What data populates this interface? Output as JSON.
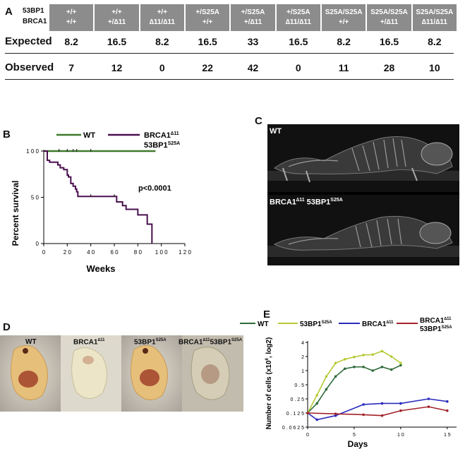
{
  "panelA": {
    "label": "A",
    "gene_labels": [
      "53BP1",
      "BRCA1"
    ],
    "genotypes": [
      {
        "g53": "+/+",
        "brca": "+/+"
      },
      {
        "g53": "+/+",
        "brca": "+/∆11"
      },
      {
        "g53": "+/+",
        "brca": "∆11/∆11"
      },
      {
        "g53": "+/S25A",
        "brca": "+/+"
      },
      {
        "g53": "+/S25A",
        "brca": "+/∆11"
      },
      {
        "g53": "+/S25A",
        "brca": "∆11/∆11"
      },
      {
        "g53": "S25A/S25A",
        "brca": "+/+"
      },
      {
        "g53": "S25A/S25A",
        "brca": "+/∆11"
      },
      {
        "g53": "S25A/S25A",
        "brca": "∆11/∆11"
      }
    ],
    "rows": [
      {
        "label": "Expected",
        "values": [
          "8.2",
          "16.5",
          "8.2",
          "16.5",
          "33",
          "16.5",
          "8.2",
          "16.5",
          "8.2"
        ]
      },
      {
        "label": "Observed",
        "values": [
          "7",
          "12",
          "0",
          "22",
          "42",
          "0",
          "11",
          "28",
          "10"
        ]
      }
    ]
  },
  "panelB": {
    "label": "B",
    "legend": [
      {
        "name": "WT",
        "color": "#3e7a2a"
      },
      {
        "name": "BRCA1",
        "sup": "∆11",
        "name2": "53BP1",
        "sup2": "S25A",
        "color": "#4a0f4f"
      }
    ],
    "ylabel": "Percent survival",
    "xlabel": "Weeks",
    "yticks": [
      "0",
      "5 0",
      "1 0 0"
    ],
    "xticks": [
      "0",
      "2 0",
      "4 0",
      "6 0",
      "8 0",
      "1 0 0",
      "1 2 0"
    ],
    "annotation": "p<0.0001",
    "chart_data": {
      "type": "line",
      "xlim": [
        0,
        120
      ],
      "ylim": [
        0,
        100
      ],
      "series": [
        {
          "name": "WT",
          "step": true,
          "x": [
            0,
            95
          ],
          "y": [
            100,
            100
          ]
        },
        {
          "name": "BRCA1∆11 53BP1S25A",
          "step": true,
          "x": [
            0,
            3,
            5,
            8,
            10,
            12,
            14,
            17,
            20,
            21,
            23,
            25,
            27,
            28,
            29,
            40,
            60,
            62,
            67,
            70,
            80,
            88,
            92
          ],
          "y": [
            100,
            90,
            88,
            88,
            88,
            85,
            82,
            80,
            74,
            72,
            65,
            62,
            59,
            56,
            51,
            51,
            51,
            45,
            41,
            37,
            31,
            21,
            0
          ]
        }
      ]
    }
  },
  "panelC": {
    "label": "C",
    "images": [
      {
        "caption": "WT"
      },
      {
        "caption": "BRCA1",
        "sup": "∆11",
        "caption2": " 53BP1",
        "sup2": "S25A"
      }
    ]
  },
  "panelD": {
    "label": "D",
    "images": [
      {
        "caption": "WT"
      },
      {
        "caption": "BRCA1",
        "sup": "∆11"
      },
      {
        "caption": "53BP1",
        "sup": "S25A"
      },
      {
        "caption": "BRCA1",
        "sup": "∆11",
        "caption2": "53BP1",
        "sup2": "S25A"
      }
    ]
  },
  "panelE": {
    "label": "E",
    "legend": [
      {
        "name": "WT",
        "color": "#2f6b3a"
      },
      {
        "name": "53BP1",
        "sup": "S25A",
        "color": "#b7c933"
      },
      {
        "name": "BRCA1",
        "sup": "∆11",
        "color": "#2b2bbf"
      },
      {
        "name": "BRCA1",
        "sup": "∆11",
        "name2": "53BP1",
        "sup2": "S25A",
        "color": "#a3222a"
      }
    ],
    "ylabel": "Number of cells (x10",
    "ylabel_sup": "6",
    "ylabel_end": ", log2)",
    "xlabel": "Days",
    "yticks": [
      "0 . 0 6 2 5",
      "0 . 1 2 5",
      "0 . 2 5",
      "0 . 5",
      "1",
      "2",
      "4"
    ],
    "xticks": [
      "0",
      "5",
      "1 0",
      "1 5"
    ],
    "chart_data": {
      "type": "line",
      "ylog2": true,
      "xlim": [
        0,
        16
      ],
      "ylim": [
        0.0625,
        4
      ],
      "series": [
        {
          "name": "WT",
          "x": [
            0,
            1,
            2,
            3,
            4,
            5,
            6,
            7,
            8,
            9,
            10
          ],
          "y": [
            0.125,
            0.2,
            0.4,
            0.75,
            1.1,
            1.2,
            1.2,
            1.0,
            1.2,
            1.05,
            1.3
          ]
        },
        {
          "name": "53BP1S25A",
          "x": [
            0,
            1,
            2,
            3,
            4,
            5,
            6,
            7,
            8,
            9,
            10
          ],
          "y": [
            0.125,
            0.3,
            0.75,
            1.45,
            1.75,
            1.95,
            2.15,
            2.2,
            2.6,
            2.0,
            1.45
          ]
        },
        {
          "name": "BRCA1∆11",
          "x": [
            0,
            1,
            3,
            6,
            8,
            10,
            13,
            15
          ],
          "y": [
            0.125,
            0.09,
            0.11,
            0.19,
            0.2,
            0.2,
            0.25,
            0.22
          ]
        },
        {
          "name": "BRCA1∆11 53BP1S25A",
          "x": [
            0,
            3,
            6,
            8,
            10,
            13,
            15
          ],
          "y": [
            0.125,
            0.12,
            0.115,
            0.11,
            0.14,
            0.17,
            0.14
          ]
        }
      ]
    }
  }
}
